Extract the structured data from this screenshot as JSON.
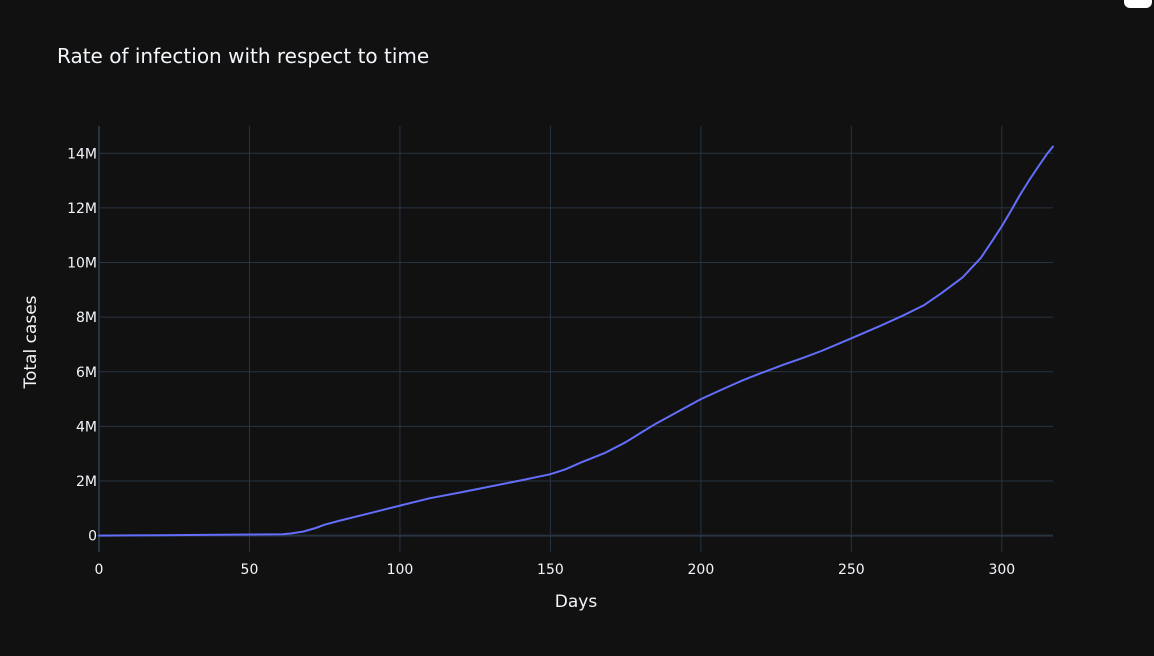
{
  "chart_data": {
    "type": "line",
    "title": "Rate of infection with respect to time",
    "xlabel": "Days",
    "ylabel": "Total cases",
    "xlim": [
      0,
      317
    ],
    "ylim": [
      -600000,
      15000000
    ],
    "x_ticks": [
      0,
      50,
      100,
      150,
      200,
      250,
      300
    ],
    "x_tick_labels": [
      "0",
      "50",
      "100",
      "150",
      "200",
      "250",
      "300"
    ],
    "y_ticks": [
      0,
      2000000,
      4000000,
      6000000,
      8000000,
      10000000,
      12000000,
      14000000
    ],
    "y_tick_labels": [
      "0",
      "2M",
      "4M",
      "6M",
      "8M",
      "10M",
      "12M",
      "14M"
    ],
    "grid": true,
    "colors": {
      "background": "#111111",
      "grid": "#283442",
      "text": "#f2f5fa",
      "series": "#636efa"
    },
    "series": [
      {
        "x": [
          0,
          20,
          40,
          61,
          64,
          68,
          72,
          75,
          80,
          90,
          100,
          110,
          120,
          130,
          140,
          150,
          155,
          160,
          168,
          175,
          180,
          185,
          192,
          200,
          207,
          214,
          220,
          227,
          234,
          240,
          246,
          253,
          260,
          267,
          274,
          280,
          287,
          293,
          297,
          300,
          303,
          306,
          309,
          312,
          315,
          317
        ],
        "y": [
          0,
          15000,
          30000,
          50000,
          80000,
          150000,
          280000,
          400000,
          550000,
          820000,
          1100000,
          1370000,
          1580000,
          1800000,
          2020000,
          2250000,
          2430000,
          2670000,
          3020000,
          3420000,
          3760000,
          4100000,
          4520000,
          5000000,
          5350000,
          5690000,
          5950000,
          6240000,
          6510000,
          6760000,
          7040000,
          7370000,
          7700000,
          8050000,
          8430000,
          8880000,
          9460000,
          10170000,
          10820000,
          11330000,
          11890000,
          12470000,
          13000000,
          13500000,
          13980000,
          14250000
        ]
      }
    ]
  }
}
